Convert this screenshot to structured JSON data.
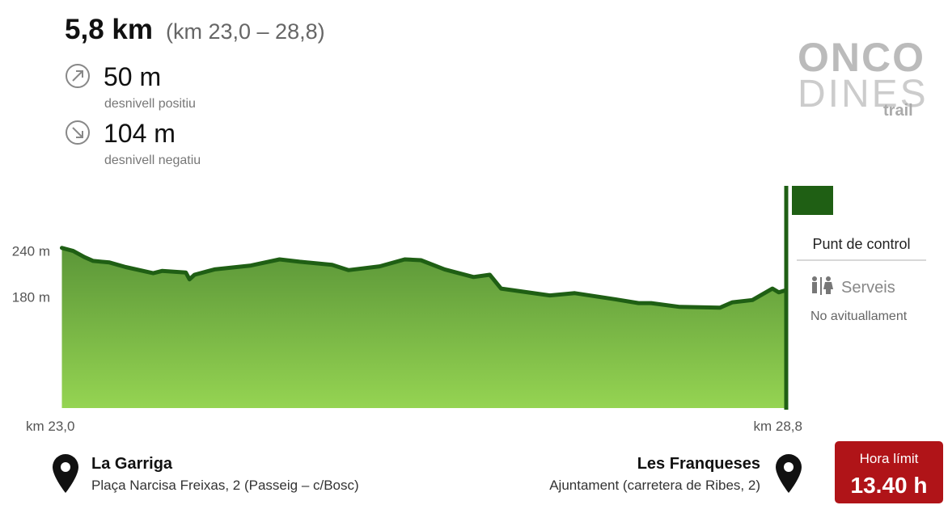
{
  "header": {
    "distance": "5,8 km",
    "range": "(km 23,0 – 28,8)",
    "ascent": "50 m",
    "ascent_label": "desnivell positiu",
    "descent": "104 m",
    "descent_label": "desnivell negatiu"
  },
  "logo": {
    "line1": "ONCO",
    "line2": "DINES",
    "line3": "trail"
  },
  "chart_data": {
    "type": "area",
    "x": [
      23.01,
      23.1,
      23.19,
      23.26,
      23.39,
      23.52,
      23.74,
      23.81,
      24.0,
      24.03,
      24.07,
      24.23,
      24.52,
      24.75,
      24.91,
      25.17,
      25.3,
      25.55,
      25.75,
      25.88,
      26.07,
      26.3,
      26.43,
      26.52,
      26.91,
      27.11,
      27.43,
      27.62,
      27.72,
      27.95,
      28.27,
      28.37,
      28.53,
      28.69,
      28.74,
      28.8
    ],
    "values": [
      244,
      240,
      232,
      227,
      225,
      219,
      211,
      214,
      212,
      203,
      209,
      216,
      221,
      229,
      226,
      222,
      215,
      220,
      229,
      228,
      216,
      206,
      209,
      191,
      182,
      185,
      177,
      172,
      172,
      167,
      166,
      173,
      176,
      191,
      186,
      189
    ],
    "color": "#1f5f14",
    "xlim": [
      23.0,
      28.8
    ],
    "xticks": [
      {
        "value": 23.0,
        "label": "km 23,0"
      },
      {
        "value": 28.8,
        "label": "km 28,8"
      }
    ],
    "ylim": [
      35,
      325
    ],
    "yticks": [
      {
        "value": 240,
        "label": "240 m"
      },
      {
        "value": 180,
        "label": "180 m"
      }
    ]
  },
  "control": {
    "title": "Punt de control",
    "services": "Serveis",
    "supply": "No avituallament"
  },
  "start": {
    "name": "La Garriga",
    "address": "Plaça Narcisa Freixas, 2 (Passeig – c/Bosc)"
  },
  "end": {
    "name": "Les Franqueses",
    "address": "Ajuntament (carretera de Ribes, 2)"
  },
  "deadline": {
    "label": "Hora límit",
    "time": "13.40 h"
  }
}
